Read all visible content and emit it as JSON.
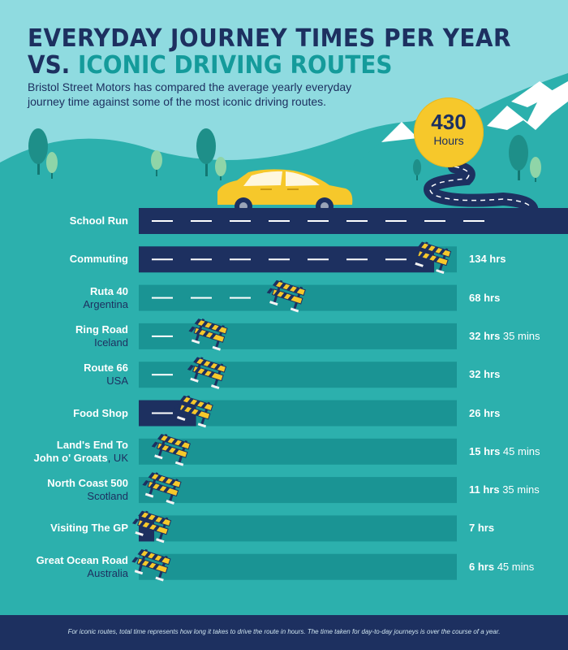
{
  "header": {
    "title_line1": "EVERYDAY JOURNEY TIMES PER YEAR",
    "title_line2_prefix": "VS.",
    "title_line2_highlight": "ICONIC DRIVING ROUTES",
    "subtitle": "Bristol Street Motors has compared the average yearly everyday journey time against some of the most iconic driving routes."
  },
  "badge": {
    "value": "430",
    "unit": "Hours"
  },
  "footer": {
    "note": "For iconic routes, total time represents how long it takes to drive the route in hours. The time taken for day-to-day journeys is over the course of a year."
  },
  "colors": {
    "background": "#2cb0ad",
    "sky": "#8fdbe0",
    "road": "#1d3060",
    "track": "#1a9494",
    "badge": "#f6c82b",
    "car": "#f6c82b"
  },
  "chart_data": {
    "type": "bar",
    "unit": "hours",
    "categories": [
      {
        "name": "School Run",
        "sub": "",
        "value": 430,
        "display_main": "",
        "display_rest": "",
        "kind": "everyday"
      },
      {
        "name": "Commuting",
        "sub": "",
        "value": 134,
        "display_main": "134 hrs",
        "display_rest": "",
        "kind": "everyday"
      },
      {
        "name": "Ruta 40",
        "sub": "Argentina",
        "value": 68,
        "display_main": "68 hrs",
        "display_rest": "",
        "kind": "iconic"
      },
      {
        "name": "Ring Road",
        "sub": "Iceland",
        "value": 32.58,
        "display_main": "32 hrs",
        "display_rest": " 35 mins",
        "kind": "iconic"
      },
      {
        "name": "Route 66",
        "sub": "USA",
        "value": 32,
        "display_main": "32 hrs",
        "display_rest": "",
        "kind": "iconic"
      },
      {
        "name": "Food Shop",
        "sub": "",
        "value": 26,
        "display_main": "26 hrs",
        "display_rest": "",
        "kind": "everyday"
      },
      {
        "name": "Land's End To",
        "sub": "John o' Groats",
        "inline_suffix": ", UK",
        "value": 15.75,
        "display_main": "15 hrs",
        "display_rest": " 45 mins",
        "kind": "iconic"
      },
      {
        "name": "North Coast 500",
        "sub": "Scotland",
        "value": 11.58,
        "display_main": "11 hrs",
        "display_rest": " 35 mins",
        "kind": "iconic"
      },
      {
        "name": "Visiting The GP",
        "sub": "",
        "value": 7,
        "display_main": "7 hrs",
        "display_rest": "",
        "kind": "everyday"
      },
      {
        "name": "Great Ocean Road",
        "sub": "Australia",
        "value": 6.75,
        "display_main": "6 hrs",
        "display_rest": " 45 mins",
        "kind": "iconic"
      }
    ]
  }
}
